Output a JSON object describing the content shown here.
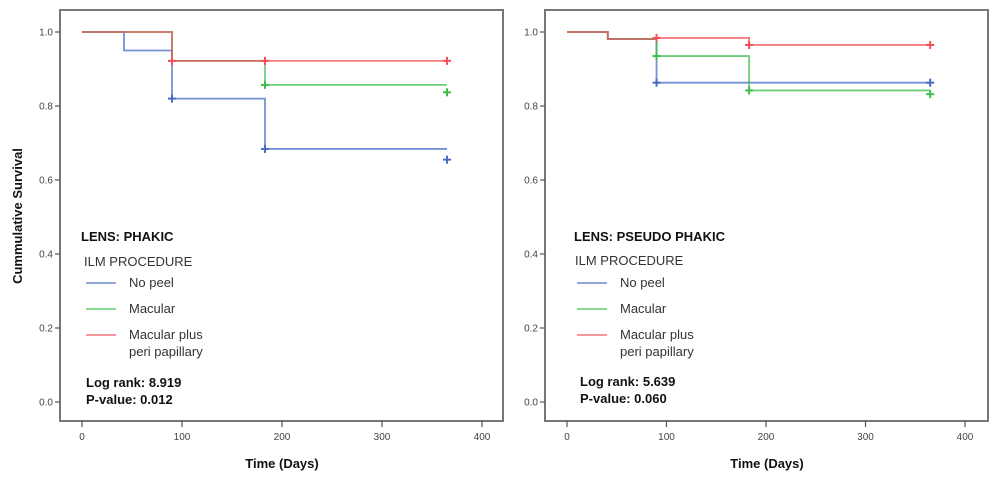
{
  "chart_data": [
    {
      "type": "line",
      "subtype": "kaplan-meier step",
      "title": "LENS: PHAKIC",
      "xlabel": "Time (Days)",
      "ylabel": "Cummulative Survival",
      "xlim": [
        0,
        400
      ],
      "ylim": [
        0.0,
        1.0
      ],
      "xticks": [
        "0",
        "100",
        "200",
        "300",
        "400"
      ],
      "yticks": [
        "0.0",
        "0.2",
        "0.4",
        "0.6",
        "0.8",
        "1.0"
      ],
      "grid": false,
      "legend_title": "ILM PROCEDURE",
      "legend_position": "bottom-left",
      "stats": {
        "log_rank": "Log rank: 8.919",
        "p_value": "P-value: 0.012"
      },
      "series": [
        {
          "name": "No peel",
          "color": "#4a6bc4",
          "steps": [
            [
              0,
              1.0
            ],
            [
              42,
              0.95
            ],
            [
              90,
              0.82
            ],
            [
              183,
              0.684
            ],
            [
              365,
              0.684
            ]
          ],
          "censored": [
            [
              90,
              0.82
            ],
            [
              183,
              0.684
            ],
            [
              365,
              0.655
            ]
          ]
        },
        {
          "name": "Macular",
          "color": "#3cbf4a",
          "steps": [
            [
              0,
              1.0
            ],
            [
              90,
              0.922
            ],
            [
              183,
              0.857
            ],
            [
              365,
              0.857
            ]
          ],
          "censored": [
            [
              183,
              0.857
            ],
            [
              365,
              0.837
            ]
          ]
        },
        {
          "name": "Macular plus\nperi papillary",
          "color": "#f0505a",
          "steps": [
            [
              0,
              1.0
            ],
            [
              90,
              0.922
            ],
            [
              365,
              0.922
            ]
          ],
          "censored": [
            [
              90,
              0.922
            ],
            [
              183,
              0.922
            ],
            [
              365,
              0.922
            ]
          ]
        }
      ]
    },
    {
      "type": "line",
      "subtype": "kaplan-meier step",
      "title": "LENS: PSEUDO PHAKIC",
      "xlabel": "Time (Days)",
      "ylabel": "",
      "xlim": [
        0,
        400
      ],
      "ylim": [
        0.0,
        1.0
      ],
      "xticks": [
        "0",
        "100",
        "200",
        "300",
        "400"
      ],
      "yticks": [
        "0.0",
        "0.2",
        "0.4",
        "0.6",
        "0.8",
        "1.0"
      ],
      "grid": false,
      "legend_title": "ILM PROCEDURE",
      "legend_position": "bottom-left",
      "stats": {
        "log_rank": "Log rank: 5.639",
        "p_value": "P-value: 0.060"
      },
      "series": [
        {
          "name": "No peel",
          "color": "#4a6bc4",
          "steps": [
            [
              0,
              1.0
            ],
            [
              41,
              0.981
            ],
            [
              90,
              0.863
            ],
            [
              365,
              0.863
            ]
          ],
          "censored": [
            [
              90,
              0.863
            ],
            [
              365,
              0.863
            ]
          ]
        },
        {
          "name": "Macular",
          "color": "#3cbf4a",
          "steps": [
            [
              0,
              1.0
            ],
            [
              41,
              0.981
            ],
            [
              90,
              0.935
            ],
            [
              183,
              0.842
            ],
            [
              365,
              0.842
            ]
          ],
          "censored": [
            [
              90,
              0.935
            ],
            [
              183,
              0.842
            ],
            [
              365,
              0.832
            ]
          ]
        },
        {
          "name": "Macular plus\nperi papillary",
          "color": "#f0505a",
          "steps": [
            [
              0,
              1.0
            ],
            [
              41,
              0.981
            ],
            [
              90,
              0.984
            ],
            [
              183,
              0.965
            ],
            [
              365,
              0.965
            ]
          ],
          "censored": [
            [
              90,
              0.984
            ],
            [
              183,
              0.965
            ],
            [
              365,
              0.965
            ]
          ]
        }
      ]
    }
  ]
}
